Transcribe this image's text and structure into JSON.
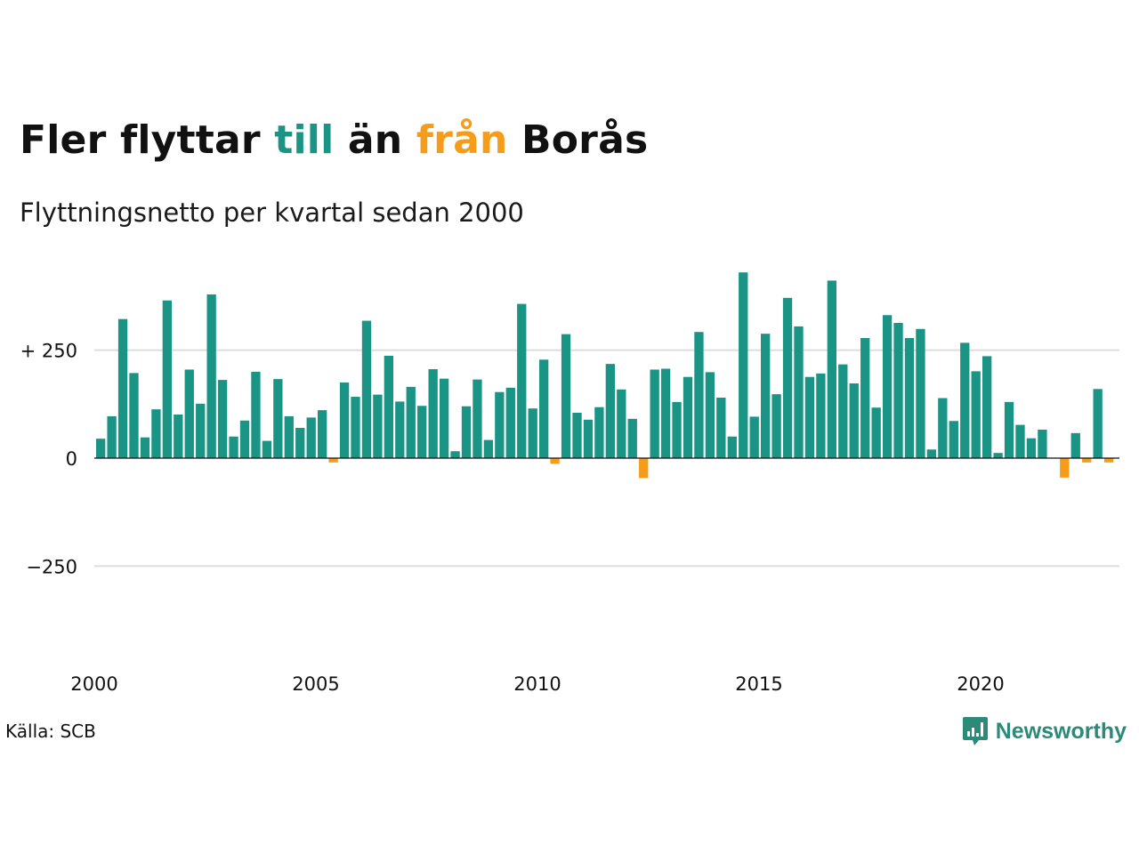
{
  "header": {
    "title_parts": [
      "Fler flyttar ",
      "till",
      " än ",
      "från",
      " Borås"
    ],
    "subtitle": "Flyttningsnetto per kvartal sedan 2000"
  },
  "footer": {
    "source": "Källa: SCB",
    "brand": "Newsworthy"
  },
  "colors": {
    "positive": "#1a9485",
    "negative": "#f59c1a",
    "brand": "#2b8a78",
    "grid": "#dddddd",
    "zero_line": "#111111"
  },
  "chart_data": {
    "type": "bar",
    "title": "Fler flyttar till än från Borås",
    "subtitle": "Flyttningsnetto per kvartal sedan 2000",
    "start_year": 2000,
    "periods_per_year": 4,
    "ylim": [
      -400,
      430
    ],
    "yticks": [
      250,
      0,
      -250
    ],
    "ytick_labels": [
      "+ 250",
      "0",
      "−250"
    ],
    "xticks": [
      "2000",
      "2005",
      "2010",
      "2015",
      "2020"
    ],
    "grid": true,
    "values": [
      45,
      97,
      322,
      197,
      48,
      113,
      365,
      101,
      205,
      126,
      379,
      181,
      50,
      87,
      200,
      40,
      183,
      97,
      70,
      94,
      111,
      -10,
      175,
      142,
      318,
      147,
      237,
      131,
      165,
      121,
      206,
      184,
      16,
      120,
      182,
      42,
      153,
      163,
      357,
      115,
      228,
      -13,
      287,
      105,
      89,
      118,
      218,
      159,
      91,
      -46,
      205,
      207,
      130,
      188,
      292,
      199,
      140,
      50,
      430,
      96,
      288,
      148,
      371,
      305,
      188,
      196,
      411,
      217,
      173,
      278,
      117,
      331,
      313,
      278,
      299,
      20,
      139,
      86,
      267,
      201,
      236,
      12,
      130,
      77,
      46,
      66,
      0,
      -45,
      58,
      -10,
      160,
      -10
    ]
  }
}
